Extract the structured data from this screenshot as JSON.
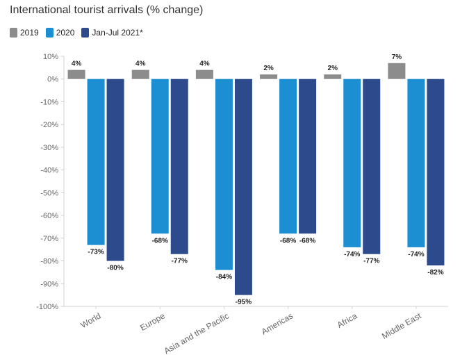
{
  "chart_data": {
    "type": "bar",
    "title": "International tourist arrivals (% change)",
    "categories": [
      "World",
      "Europe",
      "Asia and the Pacific",
      "Americas",
      "Africa",
      "Middle East"
    ],
    "series": [
      {
        "name": "2019",
        "color": "#8c8c8c",
        "values": [
          4,
          4,
          4,
          2,
          2,
          7
        ],
        "labels": [
          "4%",
          "4%",
          "4%",
          "2%",
          "2%",
          "7%"
        ]
      },
      {
        "name": "2020",
        "color": "#1b8fd2",
        "values": [
          -73,
          -68,
          -84,
          -68,
          -74,
          -74
        ],
        "labels": [
          "-73%",
          "-68%",
          "-84%",
          "-68%",
          "-74%",
          "-74%"
        ]
      },
      {
        "name": "Jan-Jul 2021*",
        "color": "#2c4a8c",
        "values": [
          -80,
          -77,
          -95,
          -68,
          -77,
          -82
        ],
        "labels": [
          "-80%",
          "-77%",
          "-95%",
          "-68%",
          "-77%",
          "-82%"
        ]
      }
    ],
    "ylim": [
      -100,
      10
    ],
    "yticks": [
      10,
      0,
      -10,
      -20,
      -30,
      -40,
      -50,
      -60,
      -70,
      -80,
      -90,
      -100
    ],
    "ytick_labels": [
      "10%",
      "0%",
      "-10%",
      "-20%",
      "-30%",
      "-40%",
      "-50%",
      "-60%",
      "-70%",
      "-80%",
      "-90%",
      "-100%"
    ],
    "xlabel": "",
    "ylabel": "",
    "grid": false,
    "legend_position": "top-left"
  }
}
